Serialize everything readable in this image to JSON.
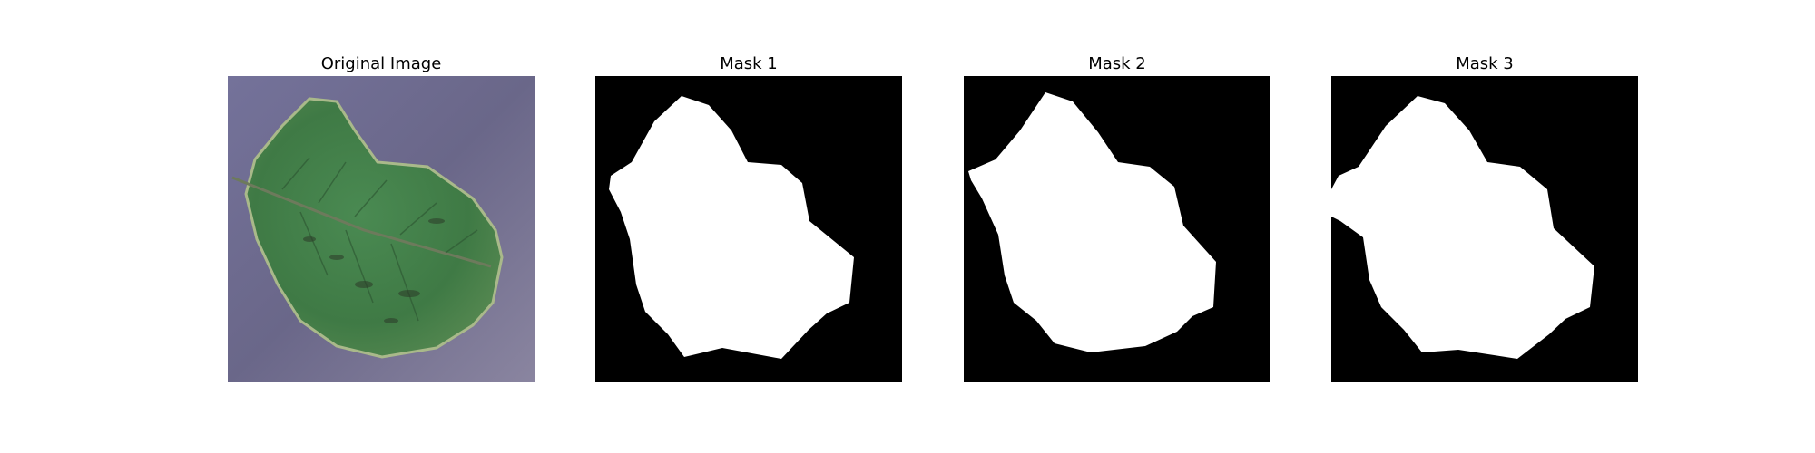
{
  "figure": {
    "panels": [
      {
        "title": "Original Image",
        "content": "leaf-photo"
      },
      {
        "title": "Mask 1",
        "content": "binary-mask"
      },
      {
        "title": "Mask 2",
        "content": "binary-mask"
      },
      {
        "title": "Mask 3",
        "content": "binary-mask"
      }
    ],
    "colors": {
      "background": "#ffffff",
      "mask_background": "#000000",
      "mask_foreground": "#ffffff",
      "leaf_green": "#4f8a4a",
      "surface_purple": "#6e6a8f"
    }
  }
}
